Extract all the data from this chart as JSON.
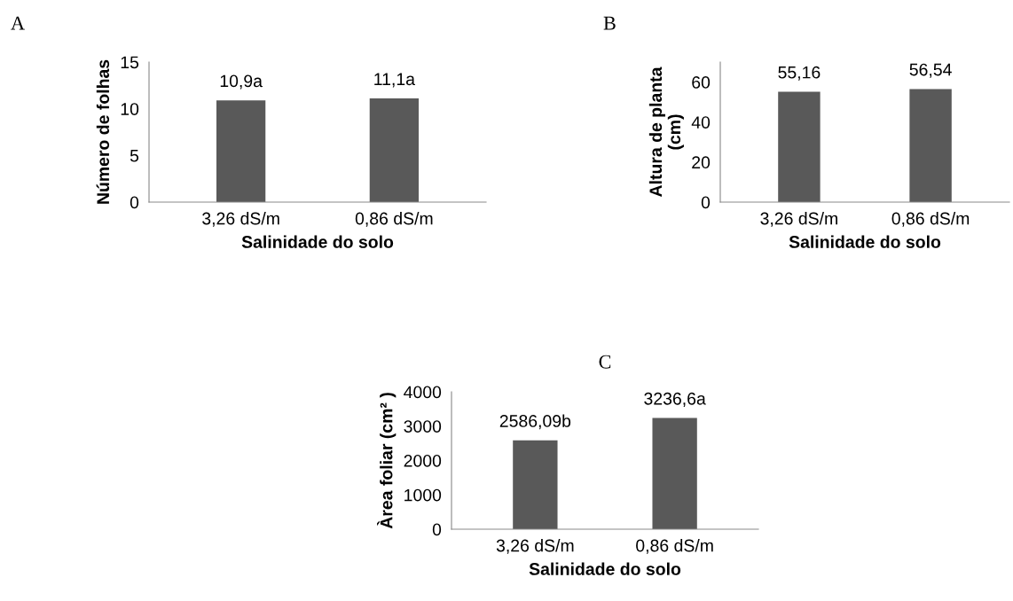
{
  "chart_data": [
    {
      "type": "bar",
      "title": "A",
      "xlabel": "Salinidade do solo",
      "ylabel": "Número de folhas",
      "categories": [
        "3,26 dS/m",
        "0,86 dS/m"
      ],
      "values": [
        10.9,
        11.1
      ],
      "value_labels": [
        "10,9a",
        "11,1a"
      ],
      "color": "#595959",
      "ylim": [
        0,
        15
      ],
      "yticks": [
        0,
        5,
        10,
        15
      ]
    },
    {
      "type": "bar",
      "title": "B",
      "xlabel": "Salinidade do solo",
      "ylabel": "Altura de planta\n(cm)",
      "categories": [
        "3,26 dS/m",
        "0,86 dS/m"
      ],
      "values": [
        55.16,
        56.54
      ],
      "value_labels": [
        "55,16",
        "56,54"
      ],
      "color": "#595959",
      "ylim": [
        0,
        70
      ],
      "yticks": [
        0,
        20,
        40,
        60
      ]
    },
    {
      "type": "bar",
      "title": "C",
      "xlabel": "Salinidade do solo",
      "ylabel": "Àrea foliar (cm² )",
      "categories": [
        "3,26 dS/m",
        "0,86 dS/m"
      ],
      "values": [
        2586.09,
        3236.6
      ],
      "value_labels": [
        "2586,09b",
        "3236,6a"
      ],
      "color": "#595959",
      "ylim": [
        0,
        4000
      ],
      "yticks": [
        0,
        1000,
        2000,
        3000,
        4000
      ]
    }
  ]
}
